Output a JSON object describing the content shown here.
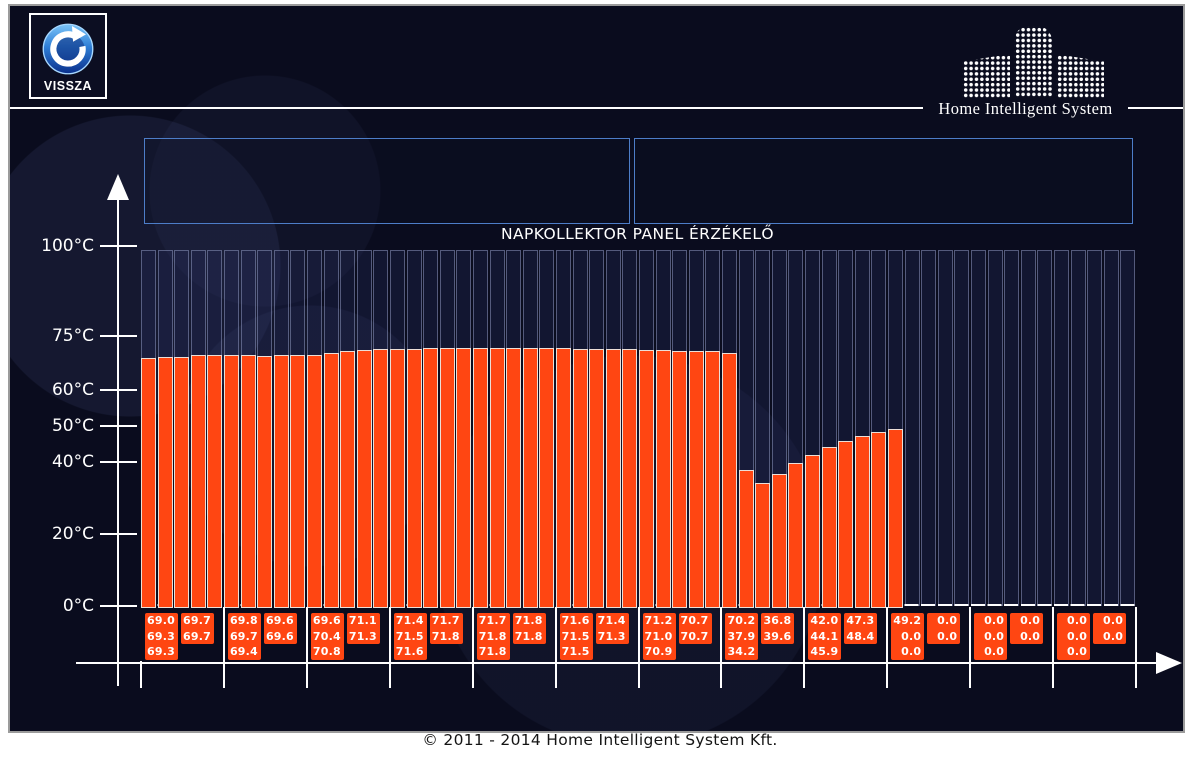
{
  "header": {
    "back_button": {
      "label": "VISSZA",
      "icon": "circular-refresh-arrow"
    },
    "logo": {
      "text": "Home Intelligent System",
      "icon": "dotted-buildings-skyline"
    }
  },
  "info_panels": {
    "left_value": "",
    "right_value": ""
  },
  "chart_data": {
    "type": "bar",
    "title": "NAPKOLLEKTOR PANEL ÉRZÉKELŐ",
    "unit": "°C",
    "ylim": [
      0,
      100
    ],
    "grid": false,
    "legend": null,
    "y_ticks": [
      {
        "value": 100,
        "label": "100°C"
      },
      {
        "value": 75,
        "label": "75°C"
      },
      {
        "value": 60,
        "label": "60°C"
      },
      {
        "value": 50,
        "label": "50°C"
      },
      {
        "value": 40,
        "label": "40°C"
      },
      {
        "value": 20,
        "label": "20°C"
      },
      {
        "value": 0,
        "label": "0°C"
      }
    ],
    "bars_per_group": 5,
    "groups": [
      [
        69.0,
        69.3,
        69.3,
        69.7,
        69.7
      ],
      [
        69.8,
        69.7,
        69.4,
        69.6,
        69.6
      ],
      [
        69.6,
        70.4,
        70.8,
        71.1,
        71.3
      ],
      [
        71.4,
        71.5,
        71.6,
        71.7,
        71.8
      ],
      [
        71.7,
        71.8,
        71.8,
        71.8,
        71.8
      ],
      [
        71.6,
        71.5,
        71.5,
        71.4,
        71.3
      ],
      [
        71.2,
        71.0,
        70.9,
        70.7,
        70.7
      ],
      [
        70.2,
        37.9,
        34.2,
        36.8,
        39.6
      ],
      [
        42.0,
        44.1,
        45.9,
        47.3,
        48.4
      ],
      [
        49.2,
        0.0,
        0.0,
        0.0,
        0.0
      ],
      [
        0.0,
        0.0,
        0.0,
        0.0,
        0.0
      ],
      [
        0.0,
        0.0,
        0.0,
        0.0,
        0.0
      ]
    ],
    "colors": {
      "bar_fill": "#ff4612",
      "bar_border": "#ecdfd7",
      "label_box_fill": "#ff4612",
      "label_text": "#ffffff",
      "axis": "#ffffff",
      "info_box_border": "#4d7dc8",
      "background": "#0a0c1e"
    }
  },
  "footer": {
    "copyright": "© 2011 - 2014 Home Intelligent System Kft."
  }
}
